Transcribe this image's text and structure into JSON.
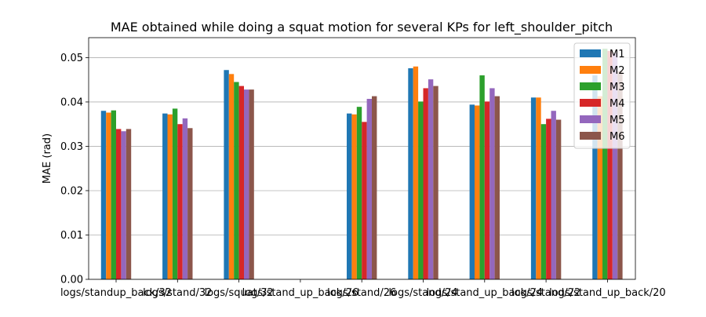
{
  "chart_data": {
    "type": "bar",
    "title": "MAE obtained while doing a squat motion for several KPs for left_shoulder_pitch",
    "xlabel": "",
    "ylabel": "MAE (rad)",
    "ylim": [
      0,
      0.0545
    ],
    "yticks": [
      0.0,
      0.01,
      0.02,
      0.03,
      0.04,
      0.05
    ],
    "ytick_labels": [
      "0.00",
      "0.01",
      "0.02",
      "0.03",
      "0.04",
      "0.05"
    ],
    "grid": "y",
    "legend_position": "top-right",
    "categories": [
      "logs/standup_back/32",
      "logs/stand/32",
      "logs/squat/32",
      "logs/stand_up_back/26",
      "logs/stand/26",
      "logs/stand/24",
      "logs/stand_up_back/24",
      "logs/stand/22",
      "logs/stand_up_back/20"
    ],
    "series": [
      {
        "name": "M1",
        "color": "#1f77b4",
        "values": [
          0.038,
          0.0374,
          0.0472,
          null,
          0.0374,
          0.0476,
          0.0394,
          0.041,
          0.046
        ]
      },
      {
        "name": "M2",
        "color": "#ff7f0e",
        "values": [
          0.0376,
          0.0372,
          0.0463,
          null,
          0.0372,
          0.048,
          0.0392,
          0.041,
          0.0413
        ]
      },
      {
        "name": "M3",
        "color": "#2ca02c",
        "values": [
          0.0381,
          0.0385,
          0.0445,
          null,
          0.0389,
          0.0401,
          0.046,
          0.035,
          0.052
        ]
      },
      {
        "name": "M4",
        "color": "#d62728",
        "values": [
          0.0339,
          0.035,
          0.0436,
          null,
          0.0355,
          0.0431,
          0.0401,
          0.0362,
          0.0515
        ]
      },
      {
        "name": "M5",
        "color": "#9467bd",
        "values": [
          0.0334,
          0.0363,
          0.0428,
          null,
          0.0407,
          0.0451,
          0.0431,
          0.038,
          0.051
        ]
      },
      {
        "name": "M6",
        "color": "#8c564b",
        "values": [
          0.0339,
          0.0341,
          0.0428,
          null,
          0.0413,
          0.0436,
          0.0413,
          0.036,
          0.047
        ]
      }
    ]
  }
}
